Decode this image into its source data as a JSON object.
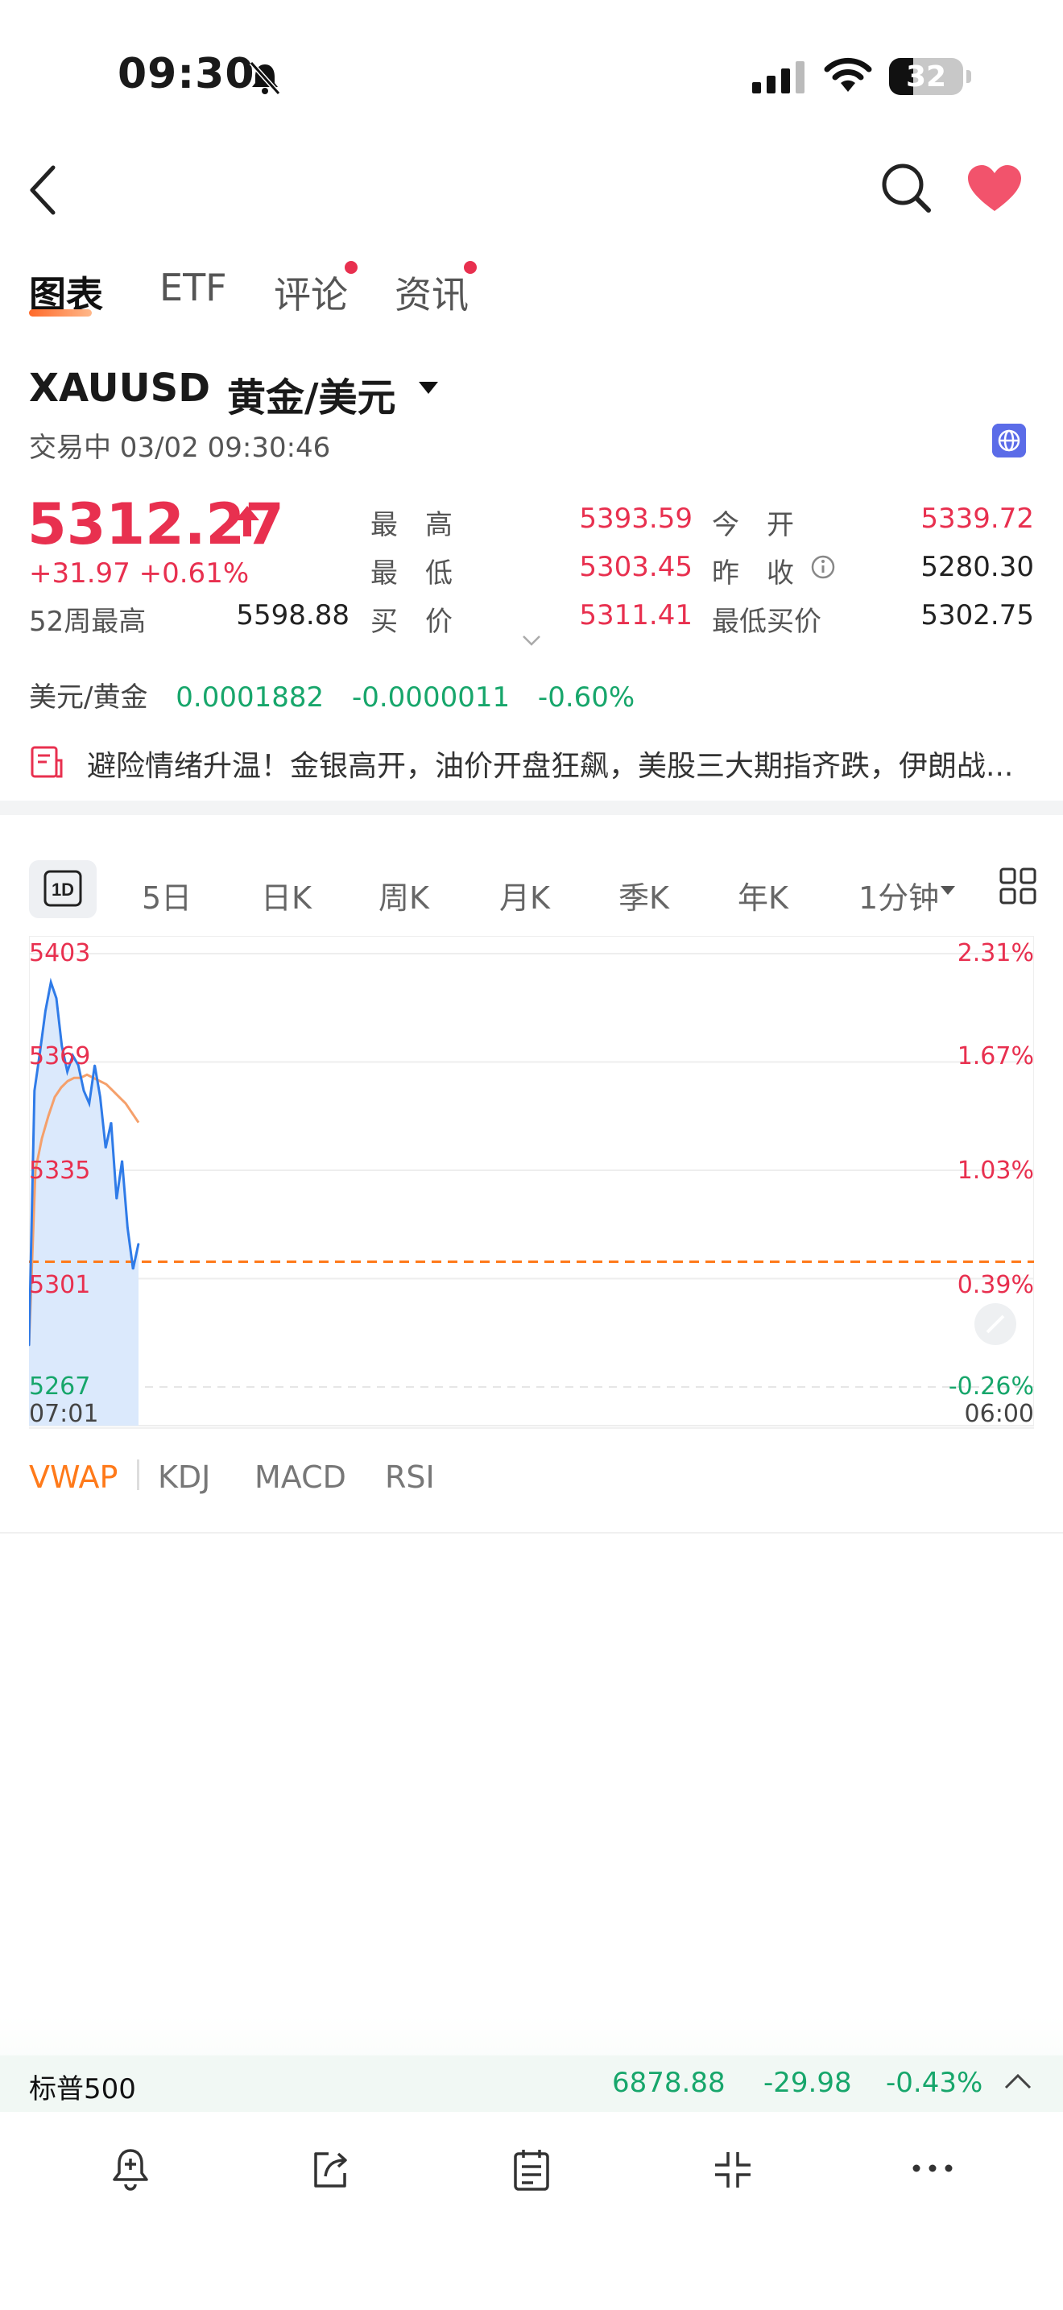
{
  "status_bar": {
    "time": "09:30",
    "battery": "32"
  },
  "tabs": [
    {
      "label": "图表"
    },
    {
      "label": "ETF"
    },
    {
      "label": "评论"
    },
    {
      "label": "资讯"
    }
  ],
  "symbol": {
    "code": "XAUUSD",
    "name": "黄金/美元",
    "status": "交易中 03/02 09:30:46"
  },
  "quote": {
    "price": "5312.27",
    "change": "+31.97 +0.61%",
    "stats": {
      "high_label": "最　高",
      "high": "5393.59",
      "open_label": "今　开",
      "open": "5339.72",
      "low_label": "最　低",
      "low": "5303.45",
      "prev_close_label": "昨　收",
      "prev_close": "5280.30",
      "week52_high_label": "52周最高",
      "week52_high": "5598.88",
      "bid_label": "买　价",
      "bid": "5311.41",
      "min_bid_label": "最低买价",
      "min_bid": "5302.75"
    }
  },
  "cross_rate": {
    "label": "美元/黄金",
    "value": "0.0001882",
    "change": "-0.0000011",
    "pct": "-0.60%"
  },
  "news_headline": "避险情绪升温！金银高开，油价开盘狂飙，美股三大期指齐跌，伊朗战...",
  "period_tabs": [
    "1D",
    "5日",
    "日K",
    "周K",
    "月K",
    "季K",
    "年K",
    "1分钟"
  ],
  "chart_data": {
    "type": "line",
    "y_ticks_left": [
      "5403",
      "5369",
      "5335",
      "5301",
      "5267"
    ],
    "y_ticks_right": [
      "2.31%",
      "1.67%",
      "1.03%",
      "0.39%",
      "-0.26%"
    ],
    "x_ticks": [
      "07:01",
      "06:00"
    ],
    "ylim": [
      5267,
      5403
    ],
    "prev_close": 5280.3,
    "series": [
      {
        "values": [
          5280,
          5360,
          5372,
          5385,
          5394,
          5389,
          5374,
          5366,
          5371,
          5368,
          5360,
          5356,
          5368,
          5358,
          5342,
          5350,
          5326,
          5338,
          5317,
          5304,
          5312
        ]
      },
      {
        "values": [
          5280,
          5335,
          5345,
          5352,
          5358,
          5361,
          5363,
          5364,
          5364,
          5365,
          5364,
          5363,
          5362,
          5360,
          5358,
          5356,
          5353,
          5350
        ]
      }
    ]
  },
  "indicators": [
    "VWAP",
    "KDJ",
    "MACD",
    "RSI"
  ],
  "ticker": {
    "name": "标普500",
    "price": "6878.88",
    "change": "-29.98",
    "pct": "-0.43%"
  },
  "colors": {
    "up": "#e8304f",
    "down": "#17a66b",
    "accent": "#ff7a1a",
    "line": "#2f7be8"
  }
}
